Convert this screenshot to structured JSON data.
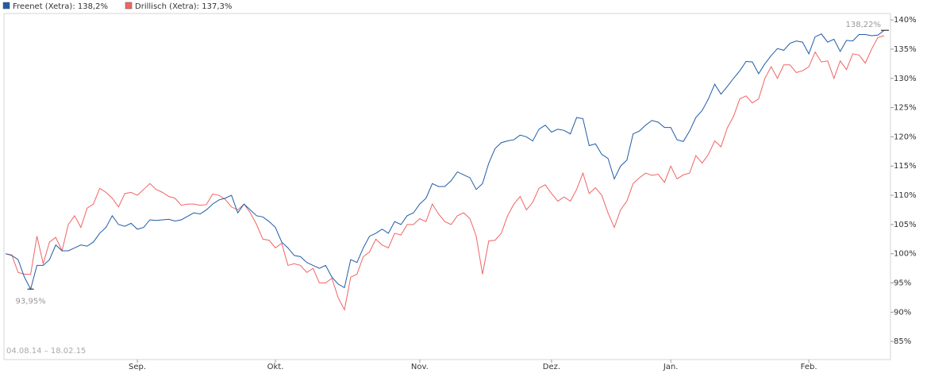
{
  "chart_data": {
    "type": "line",
    "date_range": "04.08.14 – 18.02.15",
    "categories": [
      null,
      null,
      null,
      null,
      null,
      null,
      null,
      null,
      null,
      null,
      null,
      null,
      null,
      null,
      null,
      null,
      null,
      null,
      null,
      null,
      null,
      "Sep.",
      null,
      null,
      null,
      null,
      null,
      null,
      null,
      null,
      null,
      null,
      null,
      null,
      null,
      null,
      null,
      null,
      null,
      null,
      null,
      null,
      null,
      "Okt.",
      null,
      null,
      null,
      null,
      null,
      null,
      null,
      null,
      null,
      null,
      null,
      null,
      null,
      null,
      null,
      null,
      null,
      null,
      null,
      null,
      null,
      null,
      "Nov.",
      null,
      null,
      null,
      null,
      null,
      null,
      null,
      null,
      null,
      null,
      null,
      null,
      null,
      null,
      null,
      null,
      null,
      null,
      null,
      null,
      "Dez.",
      null,
      null,
      null,
      null,
      null,
      null,
      null,
      null,
      null,
      null,
      null,
      null,
      null,
      null,
      null,
      null,
      null,
      null,
      "Jan.",
      null,
      null,
      null,
      null,
      null,
      null,
      null,
      null,
      null,
      null,
      null,
      null,
      null,
      null,
      null,
      null,
      null,
      null,
      null,
      null,
      null,
      "Feb.",
      null,
      null,
      null,
      null,
      null,
      null,
      null,
      null,
      null,
      null,
      null,
      null
    ],
    "series": [
      {
        "name": "Freenet (Xetra): 138,2%",
        "color": "#1f5ca6",
        "values": [
          100,
          99.7,
          99,
          96,
          93.95,
          98,
          98,
          99,
          101.5,
          100.5,
          100.5,
          101,
          101.5,
          101.3,
          102,
          103.5,
          104.5,
          106.5,
          105,
          104.7,
          105.2,
          104.2,
          104.5,
          105.8,
          105.7,
          105.8,
          105.9,
          105.6,
          105.8,
          106.4,
          107,
          106.8,
          107.5,
          108.5,
          109.2,
          109.5,
          110,
          107,
          108.5,
          107.5,
          106.5,
          106.3,
          105.5,
          104.5,
          102,
          101,
          99.7,
          99.5,
          98.5,
          98,
          97.5,
          98,
          96,
          94.8,
          94.2,
          99,
          98.5,
          101,
          103,
          103.5,
          104.2,
          103.5,
          105.5,
          105,
          106.5,
          107,
          108.5,
          109.5,
          112,
          111.5,
          111.5,
          112.5,
          114,
          113.5,
          113,
          111,
          112,
          115.5,
          118,
          119,
          119.3,
          119.5,
          120.3,
          120,
          119.3,
          121.3,
          122,
          120.8,
          121.3,
          121.1,
          120.5,
          123.3,
          123.1,
          118.5,
          118.8,
          117,
          116.3,
          112.8,
          115,
          116,
          120.5,
          121,
          122,
          122.8,
          122.5,
          121.6,
          121.6,
          119.5,
          119.2,
          121,
          123.3,
          124.5,
          126.5,
          129,
          127.3,
          128.6,
          130,
          131.3,
          132.9,
          132.8,
          130.8,
          132.5,
          133.9,
          135.1,
          134.8,
          136,
          136.4,
          136.2,
          134.2,
          137.1,
          137.6,
          136.2,
          136.7,
          134.6,
          136.5,
          136.4,
          137.5,
          137.5,
          137.3,
          137.4,
          138.22
        ]
      },
      {
        "name": "Drillisch (Xetra): 137,3%",
        "color": "#f06464",
        "values": [
          100,
          99.8,
          96.8,
          96.5,
          96.5,
          103,
          98.3,
          102,
          102.8,
          100.5,
          105,
          106.5,
          104.5,
          107.8,
          108.5,
          111.2,
          110.5,
          109.5,
          108,
          110.3,
          110.5,
          110,
          111,
          112,
          111,
          110.5,
          109.8,
          109.5,
          108.3,
          108.5,
          108.5,
          108.3,
          108.4,
          110.2,
          110,
          109.3,
          108,
          107.5,
          108.5,
          107,
          105,
          102.5,
          102.3,
          101,
          101.8,
          98,
          98.3,
          98,
          96.8,
          97.5,
          95,
          95,
          95.8,
          92.5,
          90.4,
          96,
          96.5,
          99.5,
          100.3,
          102.5,
          101.5,
          101,
          103.5,
          103.2,
          105,
          105,
          106,
          105.5,
          108.5,
          106.8,
          105.5,
          105,
          106.5,
          107,
          106,
          103,
          96.5,
          102.2,
          102.3,
          103.5,
          106.5,
          108.5,
          109.8,
          107.5,
          108.8,
          111.2,
          111.8,
          110.3,
          109,
          109.7,
          109,
          111,
          113.8,
          110.3,
          111.3,
          110,
          107,
          104.5,
          107.5,
          109,
          112,
          113,
          113.8,
          113.4,
          113.6,
          112.2,
          115,
          112.8,
          113.5,
          113.8,
          116.8,
          115.5,
          117,
          119.3,
          118.3,
          121.5,
          123.5,
          126.5,
          127,
          125.8,
          126.5,
          130,
          132,
          130,
          132.3,
          132.3,
          131,
          131.3,
          132,
          134.5,
          132.8,
          133,
          130,
          133,
          131.5,
          134.2,
          134,
          132.6,
          135,
          137,
          137.3
        ]
      }
    ],
    "annotations": [
      {
        "value": 93.95,
        "label": "93,95%"
      },
      {
        "value": 138.22,
        "label": "138,22%"
      }
    ],
    "ylim": [
      81.9,
      141.1
    ],
    "yticks": [
      {
        "value": 85,
        "label": "85%"
      },
      {
        "value": 90,
        "label": "90%"
      },
      {
        "value": 95,
        "label": "95%"
      },
      {
        "value": 100,
        "label": "100%"
      },
      {
        "value": 105,
        "label": "105%"
      },
      {
        "value": 110,
        "label": "110%"
      },
      {
        "value": 115,
        "label": "115%"
      },
      {
        "value": 120,
        "label": "120%"
      },
      {
        "value": 125,
        "label": "125%"
      },
      {
        "value": 130,
        "label": "130%"
      },
      {
        "value": 135,
        "label": "135%"
      },
      {
        "value": 140,
        "label": "140%"
      }
    ]
  }
}
